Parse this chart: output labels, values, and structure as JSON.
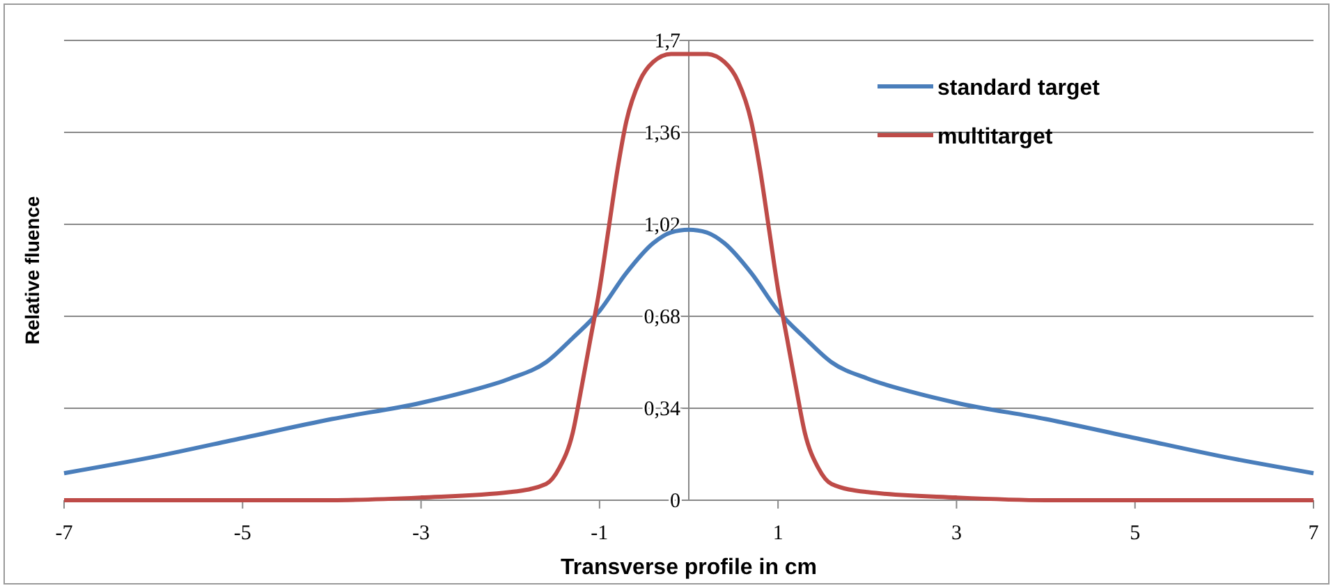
{
  "chart_data": {
    "type": "line",
    "xlabel": "Transverse profile in cm",
    "ylabel": "Relative fluence",
    "xlim": [
      -7,
      7
    ],
    "xticks": [
      -7,
      -5,
      -3,
      -1,
      1,
      3,
      5,
      7
    ],
    "ylim": [
      0,
      1.7
    ],
    "yticks": [
      0,
      {
        "value": 0.34,
        "label": "0,34"
      },
      {
        "value": 0.68,
        "label": "0,68"
      },
      {
        "value": 1.02,
        "label": "1,02"
      },
      {
        "value": 1.36,
        "label": "1,36"
      },
      {
        "value": 1.7,
        "label": "1,7"
      }
    ],
    "grid": "y",
    "legend": "top right",
    "marker": "none",
    "line_style": "solid",
    "series": [
      {
        "name": "standard target",
        "color": "#4a7ebb",
        "x": [
          -7,
          -6,
          -5,
          -4,
          -3,
          -2.5,
          -2,
          -1.6,
          -1.3,
          -1,
          -0.7,
          -0.4,
          -0.2,
          0,
          0.2,
          0.4,
          0.7,
          1,
          1.3,
          1.6,
          2,
          2.5,
          3,
          4,
          5,
          6,
          7
        ],
        "values": [
          0.1,
          0.16,
          0.23,
          0.3,
          0.36,
          0.4,
          0.45,
          0.51,
          0.6,
          0.7,
          0.84,
          0.95,
          0.99,
          1.0,
          0.99,
          0.95,
          0.84,
          0.7,
          0.6,
          0.51,
          0.45,
          0.4,
          0.36,
          0.3,
          0.23,
          0.16,
          0.1
        ]
      },
      {
        "name": "multitarget",
        "color": "#be4b48",
        "x": [
          -7,
          -4,
          -3,
          -2,
          -1.6,
          -1.45,
          -1.3,
          -1.2,
          -1.1,
          -1,
          -0.9,
          -0.8,
          -0.7,
          -0.55,
          -0.4,
          -0.2,
          0,
          0.2,
          0.4,
          0.55,
          0.7,
          0.8,
          0.9,
          1,
          1.1,
          1.2,
          1.3,
          1.45,
          1.6,
          2,
          3,
          4,
          7
        ],
        "values": [
          0,
          0,
          0.01,
          0.03,
          0.06,
          0.12,
          0.25,
          0.42,
          0.6,
          0.78,
          1.0,
          1.22,
          1.4,
          1.55,
          1.62,
          1.65,
          1.65,
          1.65,
          1.62,
          1.55,
          1.4,
          1.22,
          1.0,
          0.78,
          0.6,
          0.42,
          0.25,
          0.12,
          0.06,
          0.03,
          0.01,
          0,
          0
        ]
      }
    ]
  }
}
